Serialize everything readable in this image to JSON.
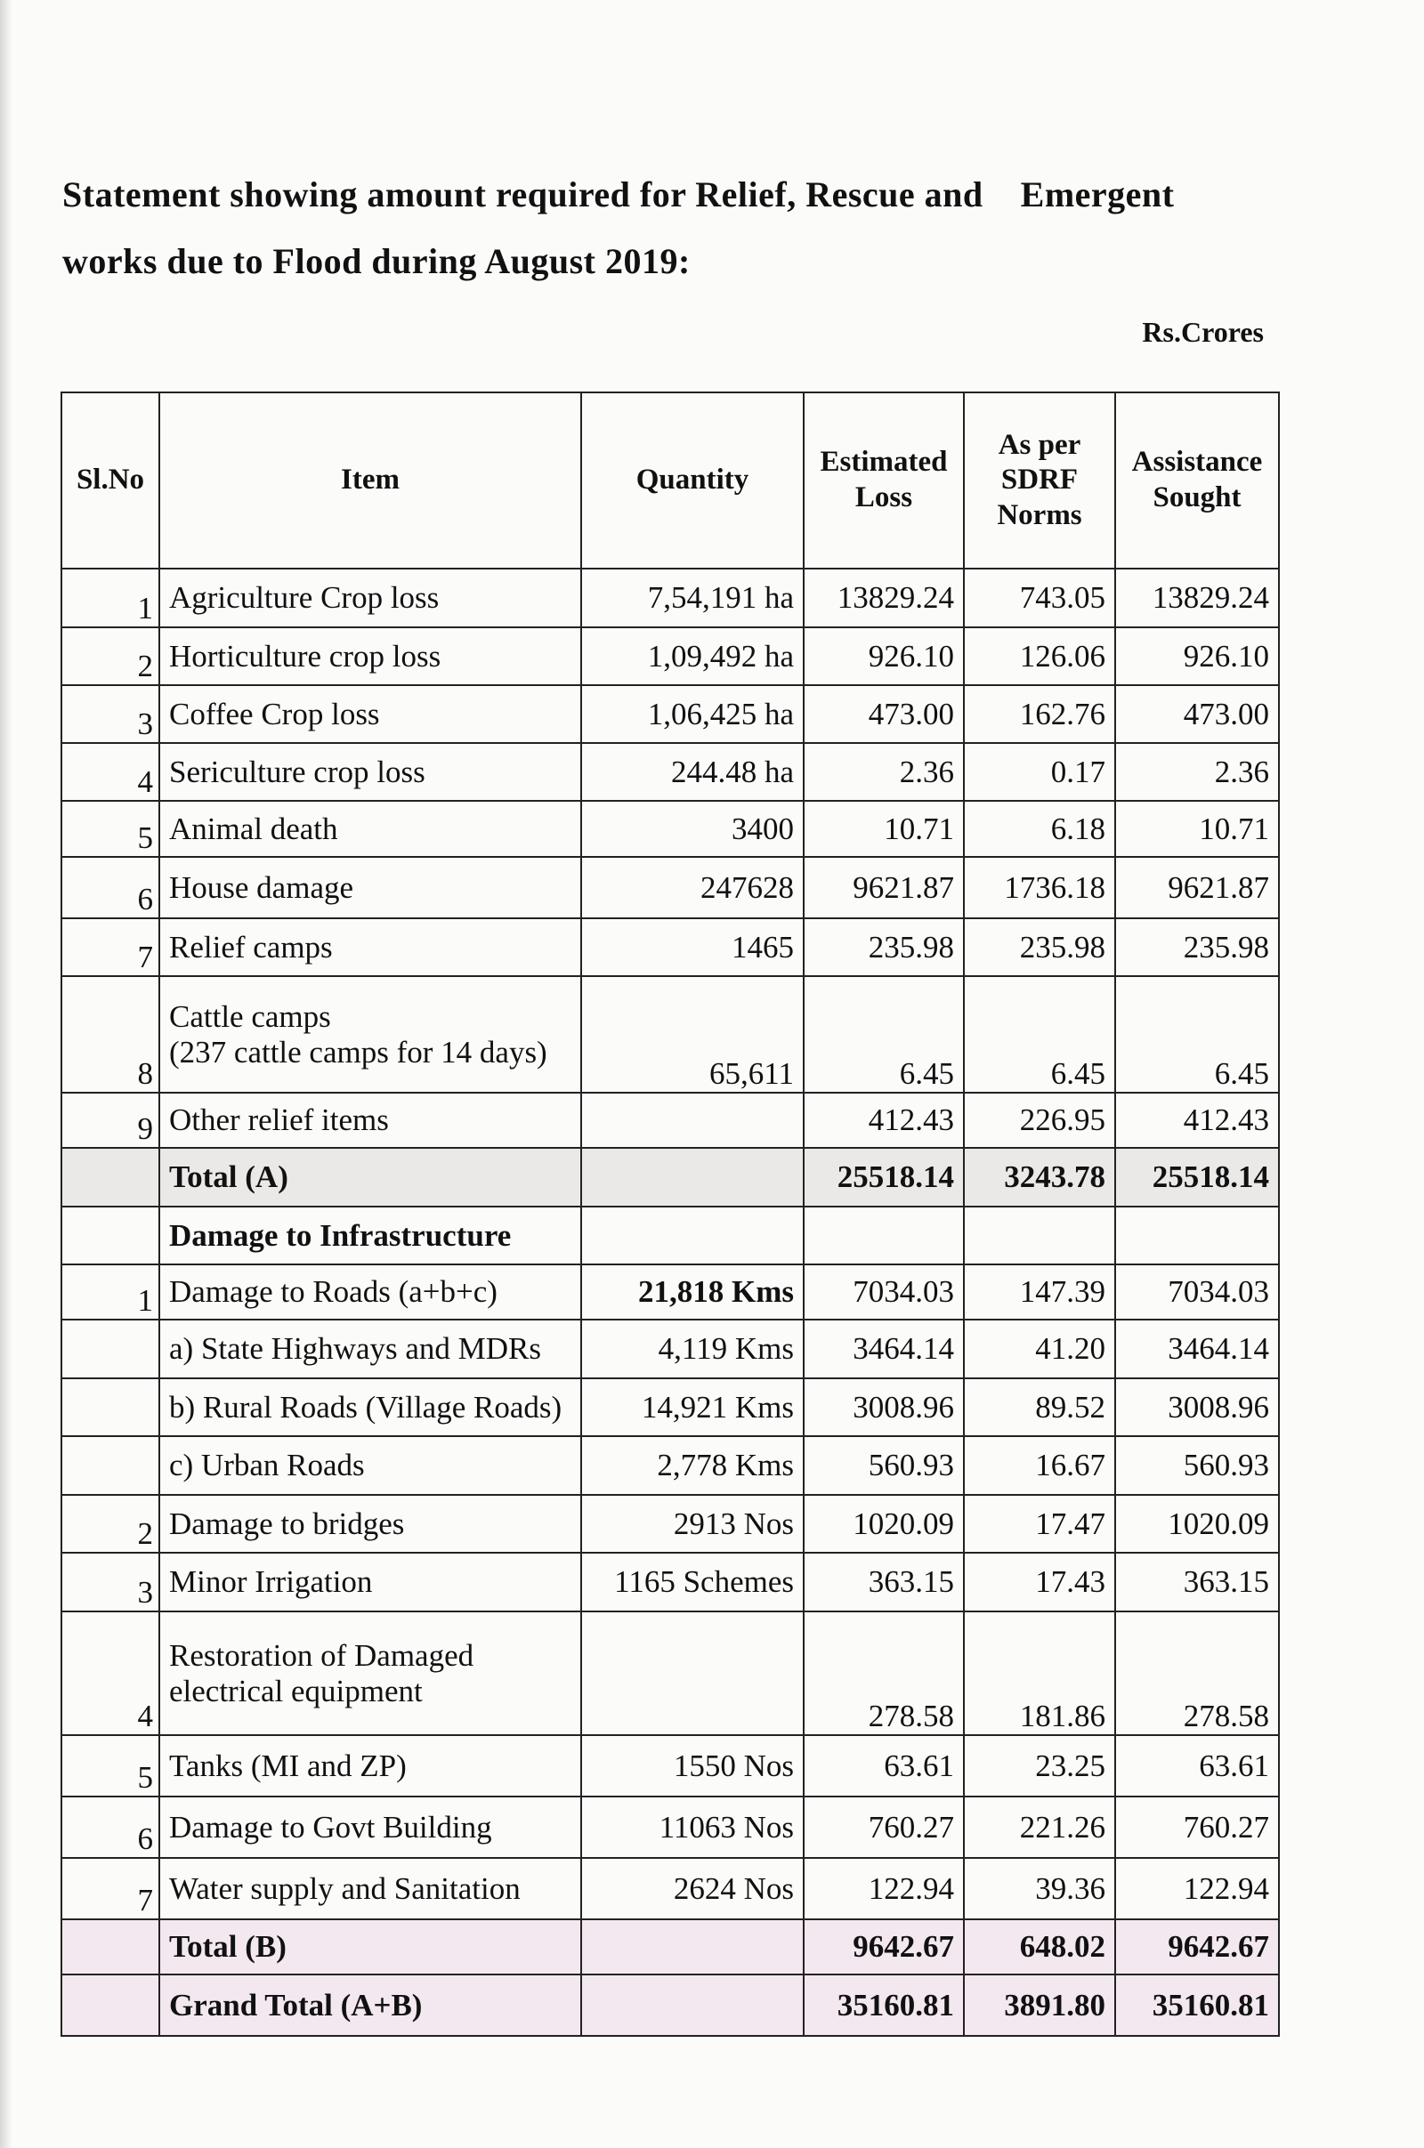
{
  "title_line1": "Statement showing amount required for Relief, Rescue and    Emergent",
  "title_line2": "works due to Flood during August 2019:",
  "unit": "Rs.Crores",
  "columns": [
    "Sl.No",
    "Item",
    "Quantity",
    "Estimated Loss",
    "As per SDRF Norms",
    "Assistance Sought"
  ],
  "rows": [
    {
      "sl": "1",
      "item": "Agriculture Crop loss",
      "qty": "7,54,191 ha",
      "est": "13829.24",
      "sdrf": "743.05",
      "sought": "13829.24"
    },
    {
      "sl": "2",
      "item": "Horticulture crop loss",
      "qty": "1,09,492 ha",
      "est": "926.10",
      "sdrf": "126.06",
      "sought": "926.10"
    },
    {
      "sl": "3",
      "item": "Coffee Crop loss",
      "qty": "1,06,425 ha",
      "est": "473.00",
      "sdrf": "162.76",
      "sought": "473.00"
    },
    {
      "sl": "4",
      "item": "Sericulture crop loss",
      "qty": "244.48 ha",
      "est": "2.36",
      "sdrf": "0.17",
      "sought": "2.36"
    },
    {
      "sl": "5",
      "item": "Animal death",
      "qty": "3400",
      "est": "10.71",
      "sdrf": "6.18",
      "sought": "10.71"
    },
    {
      "sl": "6",
      "item": "House damage",
      "qty": "247628",
      "est": "9621.87",
      "sdrf": "1736.18",
      "sought": "9621.87"
    },
    {
      "sl": "7",
      "item": "Relief camps",
      "qty": "1465",
      "est": "235.98",
      "sdrf": "235.98",
      "sought": "235.98"
    },
    {
      "sl": "8",
      "item": "Cattle camps\n(237 cattle camps for 14 days)",
      "qty": "65,611",
      "est": "6.45",
      "sdrf": "6.45",
      "sought": "6.45"
    },
    {
      "sl": "9",
      "item": "Other relief items",
      "qty": "",
      "est": "412.43",
      "sdrf": "226.95",
      "sought": "412.43"
    },
    {
      "sl": "",
      "item": "Total (A)",
      "qty": "",
      "est": "25518.14",
      "sdrf": "3243.78",
      "sought": "25518.14",
      "style": "total"
    },
    {
      "sl": "",
      "item": "Damage to Infrastructure",
      "qty": "",
      "est": "",
      "sdrf": "",
      "sought": "",
      "style": "head"
    },
    {
      "sl": "1",
      "item": "Damage to Roads (a+b+c)",
      "qty": "21,818 Kms",
      "est": "7034.03",
      "sdrf": "147.39",
      "sought": "7034.03",
      "boldqty": true
    },
    {
      "sl": "",
      "item": "a) State Highways and MDRs",
      "qty": "4,119 Kms",
      "est": "3464.14",
      "sdrf": "41.20",
      "sought": "3464.14"
    },
    {
      "sl": "",
      "item": "b) Rural Roads (Village Roads)",
      "qty": "14,921 Kms",
      "est": "3008.96",
      "sdrf": "89.52",
      "sought": "3008.96"
    },
    {
      "sl": "",
      "item": "c) Urban Roads",
      "qty": "2,778 Kms",
      "est": "560.93",
      "sdrf": "16.67",
      "sought": "560.93"
    },
    {
      "sl": "2",
      "item": "Damage to bridges",
      "qty": "2913 Nos",
      "est": "1020.09",
      "sdrf": "17.47",
      "sought": "1020.09"
    },
    {
      "sl": "3",
      "item": "Minor Irrigation",
      "qty": "1165 Schemes",
      "est": "363.15",
      "sdrf": "17.43",
      "sought": "363.15"
    },
    {
      "sl": "4",
      "item": "Restoration of Damaged\nelectrical equipment",
      "qty": "",
      "est": "278.58",
      "sdrf": "181.86",
      "sought": "278.58"
    },
    {
      "sl": "5",
      "item": "Tanks (MI and ZP)",
      "qty": "1550 Nos",
      "est": "63.61",
      "sdrf": "23.25",
      "sought": "63.61"
    },
    {
      "sl": "6",
      "item": "Damage to Govt Building",
      "qty": "11063 Nos",
      "est": "760.27",
      "sdrf": "221.26",
      "sought": "760.27"
    },
    {
      "sl": "7",
      "item": "Water supply and Sanitation",
      "qty": "2624 Nos",
      "est": "122.94",
      "sdrf": "39.36",
      "sought": "122.94"
    },
    {
      "sl": "",
      "item": "Total (B)",
      "qty": "",
      "est": "9642.67",
      "sdrf": "648.02",
      "sought": "9642.67",
      "style": "pink"
    },
    {
      "sl": "",
      "item": "Grand Total (A+B)",
      "qty": "",
      "est": "35160.81",
      "sdrf": "3891.80",
      "sought": "35160.81",
      "style": "pink"
    }
  ]
}
